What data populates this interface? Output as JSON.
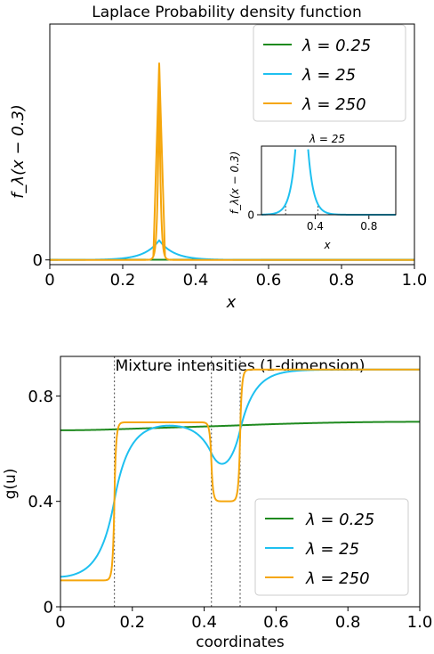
{
  "chart_data": [
    {
      "type": "line",
      "title": "Laplace Probability density function",
      "xlabel": "x",
      "ylabel": "f_λ(x − 0.3)",
      "xlim": [
        0,
        1
      ],
      "ylim": [
        -3,
        150
      ],
      "x_ticks": [
        "0",
        "0.2",
        "0.4",
        "0.6",
        "0.8",
        "1.0"
      ],
      "y_ticks": [
        "0"
      ],
      "location": 0.3,
      "series": [
        {
          "name": "λ = 0.25",
          "lambda": 0.25,
          "color": "#1f8a1f",
          "peak": 0.125
        },
        {
          "name": "λ = 25",
          "lambda": 25,
          "color": "#1ec0f0",
          "peak": 12.5
        },
        {
          "name": "λ = 250",
          "lambda": 250,
          "color": "#f5a60c",
          "peak": 125
        }
      ],
      "legend": "upper right",
      "inset": {
        "title": "λ = 25",
        "xlabel": "x",
        "ylabel": "f_λ(x − 0.3)",
        "xlim": [
          0,
          1
        ],
        "ylim": [
          0,
          4
        ],
        "x_ticks": [
          "0.4",
          "0.8"
        ],
        "y_ticks": [
          "0"
        ],
        "series": "λ = 25",
        "dotted_lines_x": [
          0.18,
          0.42
        ],
        "placement": "right-center"
      }
    },
    {
      "type": "line",
      "title": "Mixture intensities (1-dimension)",
      "xlabel": "coordinates",
      "ylabel": "g(u)",
      "xlim": [
        0,
        1
      ],
      "ylim": [
        0,
        0.95
      ],
      "x_ticks": [
        "0",
        "0.2",
        "0.4",
        "0.6",
        "0.8",
        "1.0"
      ],
      "y_ticks": [
        "0",
        "0.4",
        "0.8"
      ],
      "dotted_lines_x": [
        0.15,
        0.42,
        0.5
      ],
      "segments": [
        {
          "from": 0,
          "to": 0.15,
          "value": 0.1
        },
        {
          "from": 0.15,
          "to": 0.42,
          "value": 0.7
        },
        {
          "from": 0.42,
          "to": 0.5,
          "value": 0.4
        },
        {
          "from": 0.5,
          "to": 1,
          "value": 0.9
        }
      ],
      "series": [
        {
          "name": "λ = 0.25",
          "lambda": 0.25,
          "color": "#1f8a1f"
        },
        {
          "name": "λ = 25",
          "lambda": 25,
          "color": "#1ec0f0"
        },
        {
          "name": "λ = 250",
          "lambda": 250,
          "color": "#f5a60c"
        }
      ],
      "legend": "lower right"
    }
  ]
}
